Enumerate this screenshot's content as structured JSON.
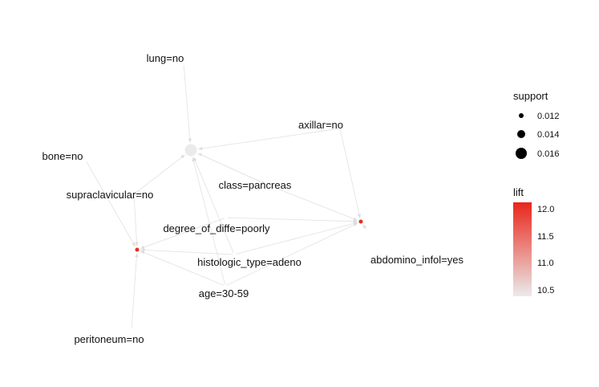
{
  "colors": {
    "edge": "#e4e4e4",
    "arrow": "#dcdcdc",
    "rule_low": "#ebebeb",
    "rule_high": "#e8261b",
    "text": "#111111"
  },
  "items": [
    {
      "id": "lung",
      "label": "lung=no"
    },
    {
      "id": "axillar",
      "label": "axillar=no"
    },
    {
      "id": "bone",
      "label": "bone=no"
    },
    {
      "id": "supraclavicular",
      "label": "supraclavicular=no"
    },
    {
      "id": "class",
      "label": "class=pancreas"
    },
    {
      "id": "degree",
      "label": "degree_of_diffe=poorly"
    },
    {
      "id": "histologic",
      "label": "histologic_type=adeno"
    },
    {
      "id": "age",
      "label": "age=30-59"
    },
    {
      "id": "abdomino",
      "label": "abdomino_infol=yes"
    },
    {
      "id": "peritoneum",
      "label": "peritoneum=no"
    }
  ],
  "rules": [
    {
      "id": "rule-1",
      "support": 0.0165,
      "lift": 10.4
    },
    {
      "id": "rule-2",
      "support": 0.0115,
      "lift": 12.1
    },
    {
      "id": "rule-3",
      "support": 0.0115,
      "lift": 12.1
    }
  ],
  "legend": {
    "support": {
      "title": "support",
      "entries": [
        {
          "label": "0.012",
          "value": 0.012
        },
        {
          "label": "0.014",
          "value": 0.014
        },
        {
          "label": "0.016",
          "value": 0.016
        }
      ]
    },
    "lift": {
      "title": "lift",
      "min": 10.4,
      "max": 12.15,
      "ticks": [
        {
          "label": "12.0",
          "value": 12.0
        },
        {
          "label": "11.5",
          "value": 11.5
        },
        {
          "label": "11.0",
          "value": 11.0
        },
        {
          "label": "10.5",
          "value": 10.5
        }
      ]
    }
  }
}
